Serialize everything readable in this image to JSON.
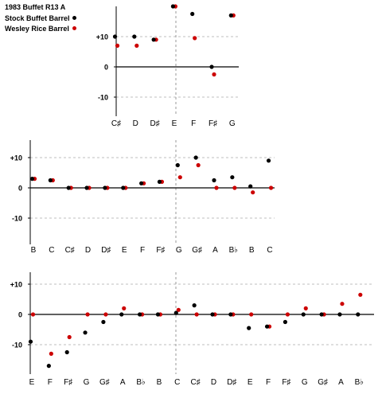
{
  "legend": {
    "title": "1983 Buffet R13 A",
    "entries": [
      {
        "label": "Stock Buffet Barrel",
        "color": "#000000"
      },
      {
        "label": "Wesley Rice Barrel",
        "color": "#cc0000"
      }
    ]
  },
  "chart_data": [
    {
      "type": "scatter",
      "ylim": [
        -15,
        20
      ],
      "yticks": [
        {
          "value": 10,
          "label": "+10"
        },
        {
          "value": 0,
          "label": "0"
        },
        {
          "value": -10,
          "label": "-10"
        }
      ],
      "categories": [
        "C♯",
        "D",
        "D♯",
        "E",
        "F",
        "F♯",
        "G"
      ],
      "series": [
        {
          "name": "Stock Buffet Barrel",
          "color": "#000000",
          "values": [
            10,
            10,
            9,
            20,
            17.5,
            0,
            17
          ]
        },
        {
          "name": "Wesley Rice Barrel",
          "color": "#cc0000",
          "values": [
            7,
            7,
            9,
            20,
            9.5,
            -2.5,
            17
          ]
        }
      ],
      "grid": true,
      "highlight_category": "E"
    },
    {
      "type": "scatter",
      "ylim": [
        -15,
        15
      ],
      "yticks": [
        {
          "value": 10,
          "label": "+10"
        },
        {
          "value": 0,
          "label": "0"
        },
        {
          "value": -10,
          "label": "-10"
        }
      ],
      "categories": [
        "B",
        "C",
        "C♯",
        "D",
        "D♯",
        "E",
        "F",
        "F♯",
        "G",
        "G♯",
        "A",
        "B♭",
        "B",
        "C"
      ],
      "series": [
        {
          "name": "Stock Buffet Barrel",
          "color": "#000000",
          "values": [
            3,
            2.5,
            0,
            0,
            0,
            0,
            1.5,
            2,
            7.5,
            10,
            2.5,
            3.5,
            0.5,
            9
          ]
        },
        {
          "name": "Wesley Rice Barrel",
          "color": "#cc0000",
          "values": [
            3,
            2.5,
            0,
            0,
            0,
            0,
            1.5,
            2,
            3.5,
            7.5,
            0,
            0,
            -1.5,
            0
          ]
        }
      ],
      "grid": true,
      "highlight_category": "G"
    },
    {
      "type": "scatter",
      "ylim": [
        -17,
        15
      ],
      "yticks": [
        {
          "value": 10,
          "label": "+10"
        },
        {
          "value": 0,
          "label": "0"
        },
        {
          "value": -10,
          "label": "-10"
        }
      ],
      "categories": [
        "E",
        "F",
        "F♯",
        "G",
        "G♯",
        "A",
        "B♭",
        "B",
        "C",
        "C♯",
        "D",
        "D♯",
        "E",
        "F",
        "F♯",
        "G",
        "G♯",
        "A",
        "B♭"
      ],
      "series": [
        {
          "name": "Stock Buffet Barrel",
          "color": "#000000",
          "values": [
            -9,
            -17,
            -12.5,
            -6,
            -2.5,
            0,
            0,
            0,
            0.5,
            3,
            0,
            0,
            -4.5,
            -4,
            -2.5,
            0,
            0,
            0,
            0
          ]
        },
        {
          "name": "Wesley Rice Barrel",
          "color": "#cc0000",
          "values": [
            0,
            -13,
            -7.5,
            0,
            0,
            2,
            0,
            0,
            1.5,
            0,
            0,
            0,
            0,
            -4,
            0,
            2,
            0,
            3.5,
            6.5
          ]
        }
      ],
      "grid": true,
      "highlight_category": "C"
    }
  ]
}
